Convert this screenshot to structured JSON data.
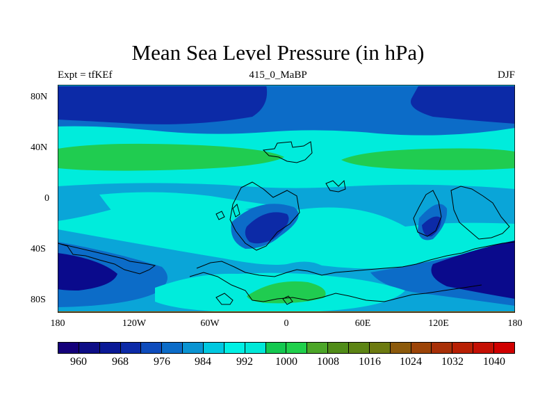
{
  "title": "Mean Sea Level Pressure (in hPa)",
  "subtitle_left": "Expt = tfKEf",
  "subtitle_center": "415_0_MaBP",
  "subtitle_right": "DJF",
  "lat_ticks": [
    "80N",
    "40N",
    "0",
    "40S",
    "80S"
  ],
  "lon_ticks": [
    "180",
    "120W",
    "60W",
    "0",
    "60E",
    "120E",
    "180"
  ],
  "colorbar": {
    "labels": [
      "960",
      "968",
      "976",
      "984",
      "992",
      "1000",
      "1008",
      "1016",
      "1024",
      "1032",
      "1040"
    ],
    "colors": [
      "#14007a",
      "#0d0d86",
      "#0a1996",
      "#0c2aa7",
      "#0e4cbc",
      "#0c6cc8",
      "#0a94d2",
      "#00c8e0",
      "#00f0e4",
      "#00e8d8",
      "#14c850",
      "#20d04c",
      "#4ca628",
      "#508c18",
      "#5c8414",
      "#6c7a10",
      "#8c5a0c",
      "#9c4408",
      "#a83008",
      "#b82004",
      "#c41004",
      "#d00000"
    ]
  },
  "map_colors": {
    "deep": "#0a0a8c",
    "navy": "#0c2aa7",
    "blue": "#0c6cc8",
    "sky": "#0aa5d8",
    "cyan": "#00ecdc",
    "green": "#20cc50"
  }
}
